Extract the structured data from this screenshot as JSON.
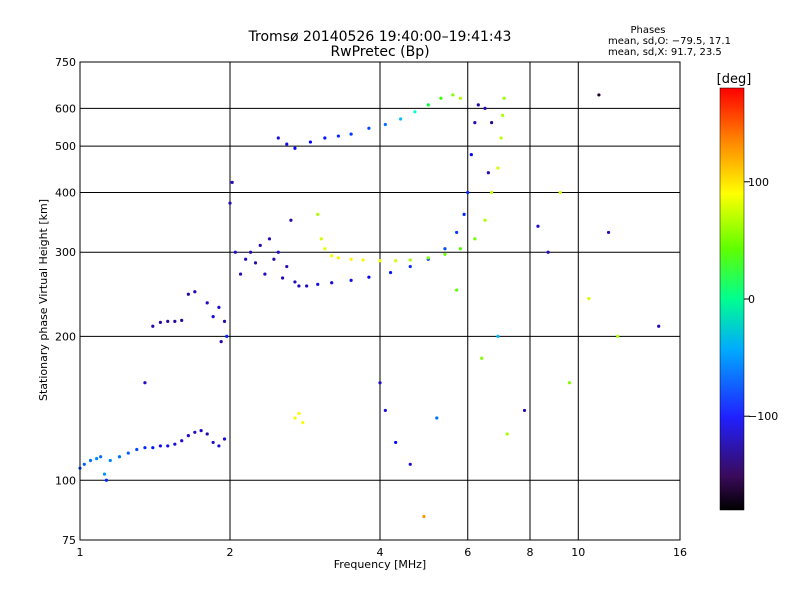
{
  "chart_data": {
    "type": "scatter",
    "title": "Tromsø 20140526 19:40:00–19:41:43",
    "subtitle": "RwPretec (Bp)",
    "xlabel": "Frequency [MHz]",
    "ylabel": "Stationary phase Virtual Height [km]",
    "x_scale": "log",
    "y_scale": "log",
    "xlim": [
      1,
      16
    ],
    "ylim": [
      75,
      750
    ],
    "x_ticks": [
      1,
      2,
      4,
      6,
      8,
      10,
      16
    ],
    "y_ticks": [
      75,
      100,
      200,
      300,
      400,
      500,
      600,
      750
    ],
    "grid": true,
    "stats": {
      "heading": "Phases",
      "o_line": "mean, sd,O: −79.5, 17.1",
      "x_line": "mean, sd,X:  91.7, 23.5"
    },
    "colorbar": {
      "label": "[deg]",
      "range": [
        -180,
        180
      ],
      "ticks": [
        100,
        0,
        -100
      ],
      "tick_labels": [
        "100",
        "0",
        "−100"
      ]
    },
    "series": [
      {
        "points": [
          [
            1.0,
            106,
            -70
          ],
          [
            1.02,
            108,
            -65
          ],
          [
            1.05,
            110,
            -60
          ],
          [
            1.08,
            111,
            -55
          ],
          [
            1.1,
            112,
            -60
          ],
          [
            1.12,
            103,
            -50
          ],
          [
            1.13,
            100,
            -80
          ],
          [
            1.15,
            110,
            -55
          ],
          [
            1.2,
            112,
            -60
          ],
          [
            1.25,
            114,
            -65
          ],
          [
            1.3,
            116,
            -70
          ],
          [
            1.35,
            117,
            -80
          ],
          [
            1.4,
            117,
            -85
          ],
          [
            1.45,
            118,
            -95
          ],
          [
            1.5,
            118,
            -95
          ],
          [
            1.55,
            119,
            -100
          ],
          [
            1.6,
            121,
            -105
          ],
          [
            1.65,
            124,
            -110
          ],
          [
            1.7,
            126,
            -115
          ],
          [
            1.75,
            127,
            -110
          ],
          [
            1.8,
            125,
            -120
          ],
          [
            1.85,
            120,
            -110
          ],
          [
            1.9,
            118,
            -100
          ],
          [
            1.95,
            122,
            -100
          ]
        ]
      },
      {
        "points": [
          [
            1.35,
            160,
            -110
          ],
          [
            1.4,
            210,
            -125
          ],
          [
            1.45,
            214,
            -125
          ],
          [
            1.5,
            215,
            -130
          ],
          [
            1.55,
            215,
            -130
          ],
          [
            1.6,
            216,
            -130
          ],
          [
            1.65,
            245,
            -125
          ],
          [
            1.7,
            248,
            -120
          ],
          [
            1.8,
            235,
            -110
          ],
          [
            1.85,
            220,
            -100
          ],
          [
            1.9,
            230,
            -105
          ],
          [
            1.92,
            195,
            -130
          ],
          [
            1.95,
            215,
            -120
          ],
          [
            1.97,
            200,
            -80
          ],
          [
            2.0,
            380,
            -120
          ],
          [
            2.02,
            420,
            -115
          ],
          [
            2.05,
            300,
            -110
          ],
          [
            2.1,
            270,
            -120
          ],
          [
            2.15,
            290,
            -110
          ],
          [
            2.2,
            300,
            -125
          ],
          [
            2.25,
            285,
            -120
          ],
          [
            2.3,
            310,
            -115
          ],
          [
            2.35,
            270,
            -110
          ],
          [
            2.4,
            320,
            -115
          ],
          [
            2.45,
            290,
            -120
          ],
          [
            2.5,
            300,
            -110
          ],
          [
            2.55,
            265,
            -120
          ],
          [
            2.6,
            280,
            -115
          ],
          [
            2.65,
            350,
            -125
          ],
          [
            2.7,
            260,
            -115
          ],
          [
            2.75,
            255,
            -115
          ],
          [
            2.85,
            255,
            -110
          ],
          [
            3.0,
            257,
            -100
          ],
          [
            3.2,
            259,
            -100
          ],
          [
            3.5,
            262,
            -95
          ],
          [
            3.8,
            266,
            -90
          ],
          [
            4.2,
            272,
            -85
          ],
          [
            4.6,
            280,
            -80
          ],
          [
            5.0,
            290,
            -75
          ],
          [
            5.4,
            305,
            -70
          ],
          [
            5.7,
            330,
            -75
          ],
          [
            5.9,
            360,
            -80
          ],
          [
            6.0,
            400,
            -80
          ],
          [
            6.1,
            480,
            -90
          ],
          [
            6.2,
            560,
            -120
          ],
          [
            6.3,
            610,
            -130
          ],
          [
            6.5,
            600,
            -120
          ],
          [
            6.6,
            440,
            -120
          ],
          [
            6.7,
            560,
            -140
          ]
        ]
      },
      {
        "points": [
          [
            2.5,
            520,
            -100
          ],
          [
            2.6,
            505,
            -100
          ],
          [
            2.7,
            495,
            -90
          ],
          [
            2.9,
            510,
            -90
          ],
          [
            3.1,
            520,
            -85
          ],
          [
            3.3,
            525,
            -80
          ],
          [
            3.5,
            530,
            -75
          ],
          [
            3.8,
            545,
            -70
          ],
          [
            4.1,
            555,
            -60
          ],
          [
            4.4,
            570,
            -40
          ],
          [
            4.7,
            590,
            -10
          ],
          [
            5.0,
            610,
            30
          ],
          [
            5.3,
            630,
            60
          ],
          [
            5.6,
            640,
            80
          ],
          [
            5.8,
            630,
            90
          ]
        ]
      },
      {
        "points": [
          [
            3.0,
            360,
            90
          ],
          [
            3.05,
            320,
            100
          ],
          [
            3.1,
            305,
            105
          ],
          [
            3.2,
            295,
            110
          ],
          [
            3.3,
            292,
            115
          ],
          [
            3.5,
            290,
            115
          ],
          [
            3.7,
            289,
            115
          ],
          [
            4.0,
            288,
            110
          ],
          [
            4.3,
            288,
            100
          ],
          [
            4.6,
            289,
            90
          ],
          [
            5.0,
            292,
            80
          ],
          [
            5.4,
            297,
            70
          ],
          [
            5.8,
            305,
            65
          ],
          [
            6.2,
            320,
            75
          ],
          [
            6.5,
            350,
            90
          ],
          [
            6.7,
            400,
            95
          ],
          [
            6.9,
            450,
            100
          ],
          [
            7.0,
            520,
            95
          ],
          [
            7.05,
            580,
            90
          ],
          [
            7.1,
            630,
            85
          ]
        ]
      },
      {
        "points": [
          [
            2.7,
            135,
            110
          ],
          [
            2.75,
            138,
            115
          ],
          [
            2.8,
            132,
            110
          ],
          [
            4.0,
            160,
            -110
          ],
          [
            4.1,
            140,
            -100
          ],
          [
            4.3,
            120,
            -90
          ],
          [
            4.6,
            108,
            -100
          ],
          [
            4.9,
            84,
            140
          ],
          [
            5.2,
            135,
            -60
          ],
          [
            5.7,
            250,
            70
          ],
          [
            6.4,
            180,
            80
          ],
          [
            6.9,
            200,
            -40
          ],
          [
            7.2,
            125,
            90
          ],
          [
            7.8,
            140,
            -120
          ],
          [
            8.3,
            340,
            -110
          ],
          [
            8.7,
            300,
            -120
          ],
          [
            9.2,
            400,
            100
          ],
          [
            9.6,
            160,
            80
          ],
          [
            10.5,
            240,
            100
          ],
          [
            11.0,
            640,
            -180
          ],
          [
            11.5,
            330,
            -110
          ],
          [
            12.0,
            200,
            90
          ],
          [
            14.5,
            210,
            -120
          ]
        ]
      }
    ]
  }
}
